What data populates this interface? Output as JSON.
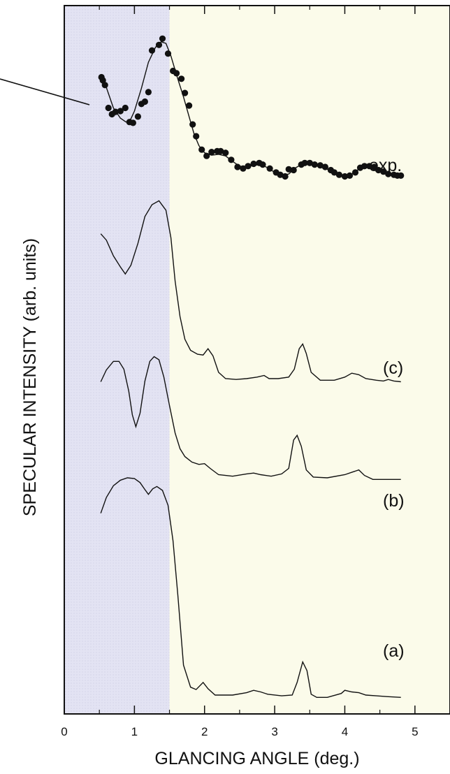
{
  "chart_data": {
    "type": "line",
    "xlabel": "GLANCING ANGLE (deg.)",
    "ylabel": "SPECULAR INTENSITY (arb. units)",
    "xlim": [
      0,
      5.5
    ],
    "x_ticks": [
      "0",
      "1",
      "2",
      "3",
      "4",
      "5"
    ],
    "shaded_regions": [
      {
        "from": 0,
        "to": 1.5,
        "color": "#e3e3f3"
      },
      {
        "from": 1.5,
        "to": 5.5,
        "color": "#fbfbea"
      }
    ],
    "colors": {
      "line": "#111111",
      "marker": "#111111",
      "axis": "#111111"
    },
    "series": [
      {
        "label": "exp.",
        "type": "scatter+fit",
        "points": [
          [
            0.53,
            9.09
          ],
          [
            0.55,
            9.05
          ],
          [
            0.58,
            8.99
          ],
          [
            0.63,
            8.7
          ],
          [
            0.68,
            8.62
          ],
          [
            0.73,
            8.65
          ],
          [
            0.8,
            8.66
          ],
          [
            0.87,
            8.7
          ],
          [
            0.93,
            8.52
          ],
          [
            0.98,
            8.51
          ],
          [
            1.05,
            8.59
          ],
          [
            1.1,
            8.75
          ],
          [
            1.15,
            8.78
          ],
          [
            1.2,
            8.9
          ],
          [
            1.25,
            9.43
          ],
          [
            1.35,
            9.5
          ],
          [
            1.4,
            9.58
          ],
          [
            1.48,
            9.39
          ],
          [
            1.55,
            9.17
          ],
          [
            1.6,
            9.14
          ],
          [
            1.67,
            9.07
          ],
          [
            1.72,
            8.89
          ],
          [
            1.78,
            8.73
          ],
          [
            1.83,
            8.49
          ],
          [
            1.88,
            8.34
          ],
          [
            1.96,
            8.17
          ],
          [
            2.03,
            8.09
          ],
          [
            2.1,
            8.14
          ],
          [
            2.18,
            8.15
          ],
          [
            2.23,
            8.15
          ],
          [
            2.3,
            8.13
          ],
          [
            2.38,
            8.04
          ],
          [
            2.47,
            7.95
          ],
          [
            2.55,
            7.93
          ],
          [
            2.62,
            7.96
          ],
          [
            2.7,
            7.99
          ],
          [
            2.78,
            8.0
          ],
          [
            2.83,
            7.98
          ],
          [
            2.93,
            7.93
          ],
          [
            3.02,
            7.88
          ],
          [
            3.08,
            7.85
          ],
          [
            3.15,
            7.83
          ],
          [
            3.2,
            7.92
          ],
          [
            3.27,
            7.91
          ],
          [
            3.38,
            7.98
          ],
          [
            3.43,
            8.0
          ],
          [
            3.5,
            8.0
          ],
          [
            3.57,
            7.98
          ],
          [
            3.65,
            7.97
          ],
          [
            3.72,
            7.95
          ],
          [
            3.8,
            7.91
          ],
          [
            3.85,
            7.88
          ],
          [
            3.92,
            7.85
          ],
          [
            4.0,
            7.83
          ],
          [
            4.07,
            7.84
          ],
          [
            4.15,
            7.88
          ],
          [
            4.22,
            7.94
          ],
          [
            4.28,
            7.96
          ],
          [
            4.35,
            7.96
          ],
          [
            4.42,
            7.95
          ],
          [
            4.48,
            7.91
          ],
          [
            4.55,
            7.89
          ],
          [
            4.62,
            7.86
          ],
          [
            4.7,
            7.85
          ],
          [
            4.75,
            7.84
          ],
          [
            4.8,
            7.84
          ]
        ],
        "fit": [
          [
            0.55,
            9.05
          ],
          [
            0.6,
            8.96
          ],
          [
            0.7,
            8.7
          ],
          [
            0.8,
            8.57
          ],
          [
            0.88,
            8.52
          ],
          [
            0.95,
            8.56
          ],
          [
            1.0,
            8.66
          ],
          [
            1.1,
            8.95
          ],
          [
            1.2,
            9.28
          ],
          [
            1.3,
            9.47
          ],
          [
            1.38,
            9.54
          ],
          [
            1.45,
            9.52
          ],
          [
            1.52,
            9.36
          ],
          [
            1.6,
            9.12
          ],
          [
            1.7,
            8.84
          ],
          [
            1.78,
            8.59
          ],
          [
            1.85,
            8.37
          ],
          [
            1.92,
            8.22
          ],
          [
            2.0,
            8.13
          ],
          [
            2.1,
            8.1
          ],
          [
            2.2,
            8.11
          ],
          [
            2.3,
            8.09
          ],
          [
            2.4,
            8.02
          ],
          [
            2.5,
            7.96
          ],
          [
            2.6,
            7.95
          ],
          [
            2.7,
            7.97
          ],
          [
            2.8,
            7.98
          ],
          [
            2.9,
            7.94
          ],
          [
            3.0,
            7.88
          ],
          [
            3.1,
            7.84
          ],
          [
            3.2,
            7.86
          ],
          [
            3.3,
            7.94
          ],
          [
            3.4,
            7.99
          ],
          [
            3.5,
            7.99
          ],
          [
            3.6,
            7.97
          ],
          [
            3.7,
            7.94
          ],
          [
            3.8,
            7.9
          ],
          [
            3.9,
            7.85
          ],
          [
            4.0,
            7.83
          ],
          [
            4.1,
            7.86
          ],
          [
            4.2,
            7.92
          ],
          [
            4.3,
            7.95
          ],
          [
            4.4,
            7.93
          ],
          [
            4.5,
            7.89
          ],
          [
            4.6,
            7.86
          ],
          [
            4.7,
            7.84
          ],
          [
            4.8,
            7.83
          ]
        ]
      },
      {
        "label": "(c)",
        "type": "line",
        "points": [
          [
            0.52,
            7.1
          ],
          [
            0.6,
            7.02
          ],
          [
            0.7,
            6.82
          ],
          [
            0.8,
            6.68
          ],
          [
            0.87,
            6.59
          ],
          [
            0.95,
            6.7
          ],
          [
            1.05,
            6.98
          ],
          [
            1.15,
            7.32
          ],
          [
            1.25,
            7.47
          ],
          [
            1.35,
            7.52
          ],
          [
            1.45,
            7.4
          ],
          [
            1.52,
            7.05
          ],
          [
            1.58,
            6.5
          ],
          [
            1.65,
            6.05
          ],
          [
            1.72,
            5.76
          ],
          [
            1.8,
            5.62
          ],
          [
            1.9,
            5.57
          ],
          [
            1.98,
            5.56
          ],
          [
            2.05,
            5.64
          ],
          [
            2.12,
            5.55
          ],
          [
            2.2,
            5.34
          ],
          [
            2.3,
            5.26
          ],
          [
            2.45,
            5.25
          ],
          [
            2.6,
            5.26
          ],
          [
            2.75,
            5.28
          ],
          [
            2.85,
            5.3
          ],
          [
            2.92,
            5.26
          ],
          [
            3.05,
            5.26
          ],
          [
            3.2,
            5.28
          ],
          [
            3.28,
            5.38
          ],
          [
            3.35,
            5.64
          ],
          [
            3.4,
            5.7
          ],
          [
            3.45,
            5.58
          ],
          [
            3.52,
            5.34
          ],
          [
            3.65,
            5.24
          ],
          [
            3.85,
            5.24
          ],
          [
            4.0,
            5.28
          ],
          [
            4.1,
            5.33
          ],
          [
            4.2,
            5.31
          ],
          [
            4.3,
            5.26
          ],
          [
            4.45,
            5.24
          ],
          [
            4.55,
            5.23
          ],
          [
            4.62,
            5.25
          ],
          [
            4.7,
            5.23
          ],
          [
            4.8,
            5.22
          ]
        ]
      },
      {
        "label": "(b)",
        "type": "line",
        "points": [
          [
            0.52,
            5.22
          ],
          [
            0.6,
            5.37
          ],
          [
            0.7,
            5.48
          ],
          [
            0.78,
            5.48
          ],
          [
            0.85,
            5.38
          ],
          [
            0.92,
            5.1
          ],
          [
            0.97,
            4.8
          ],
          [
            1.02,
            4.65
          ],
          [
            1.08,
            4.82
          ],
          [
            1.15,
            5.23
          ],
          [
            1.22,
            5.48
          ],
          [
            1.28,
            5.54
          ],
          [
            1.35,
            5.5
          ],
          [
            1.42,
            5.28
          ],
          [
            1.5,
            4.92
          ],
          [
            1.58,
            4.57
          ],
          [
            1.65,
            4.37
          ],
          [
            1.72,
            4.27
          ],
          [
            1.82,
            4.2
          ],
          [
            1.92,
            4.17
          ],
          [
            2.0,
            4.18
          ],
          [
            2.08,
            4.12
          ],
          [
            2.2,
            4.04
          ],
          [
            2.4,
            4.02
          ],
          [
            2.6,
            4.05
          ],
          [
            2.7,
            4.06
          ],
          [
            2.8,
            4.04
          ],
          [
            2.95,
            4.02
          ],
          [
            3.1,
            4.05
          ],
          [
            3.2,
            4.12
          ],
          [
            3.27,
            4.48
          ],
          [
            3.32,
            4.54
          ],
          [
            3.38,
            4.4
          ],
          [
            3.45,
            4.1
          ],
          [
            3.55,
            4.01
          ],
          [
            3.75,
            4.0
          ],
          [
            4.0,
            4.04
          ],
          [
            4.1,
            4.07
          ],
          [
            4.2,
            4.1
          ],
          [
            4.28,
            4.03
          ],
          [
            4.4,
            3.98
          ],
          [
            4.6,
            3.98
          ],
          [
            4.8,
            3.98
          ]
        ]
      },
      {
        "label": "(a)",
        "type": "line",
        "points": [
          [
            0.52,
            3.55
          ],
          [
            0.6,
            3.75
          ],
          [
            0.7,
            3.9
          ],
          [
            0.8,
            3.97
          ],
          [
            0.9,
            4.0
          ],
          [
            1.0,
            3.99
          ],
          [
            1.08,
            3.94
          ],
          [
            1.15,
            3.85
          ],
          [
            1.2,
            3.79
          ],
          [
            1.26,
            3.86
          ],
          [
            1.32,
            3.89
          ],
          [
            1.4,
            3.84
          ],
          [
            1.48,
            3.65
          ],
          [
            1.55,
            3.2
          ],
          [
            1.62,
            2.5
          ],
          [
            1.7,
            1.62
          ],
          [
            1.8,
            1.34
          ],
          [
            1.88,
            1.31
          ],
          [
            1.98,
            1.4
          ],
          [
            2.05,
            1.32
          ],
          [
            2.15,
            1.24
          ],
          [
            2.4,
            1.24
          ],
          [
            2.6,
            1.27
          ],
          [
            2.7,
            1.3
          ],
          [
            2.8,
            1.28
          ],
          [
            2.9,
            1.25
          ],
          [
            3.1,
            1.23
          ],
          [
            3.25,
            1.24
          ],
          [
            3.32,
            1.4
          ],
          [
            3.4,
            1.66
          ],
          [
            3.46,
            1.55
          ],
          [
            3.52,
            1.25
          ],
          [
            3.6,
            1.21
          ],
          [
            3.75,
            1.21
          ],
          [
            3.95,
            1.26
          ],
          [
            4.0,
            1.3
          ],
          [
            4.1,
            1.28
          ],
          [
            4.2,
            1.27
          ],
          [
            4.3,
            1.24
          ],
          [
            4.45,
            1.23
          ],
          [
            4.6,
            1.22
          ],
          [
            4.8,
            1.21
          ]
        ]
      }
    ]
  }
}
